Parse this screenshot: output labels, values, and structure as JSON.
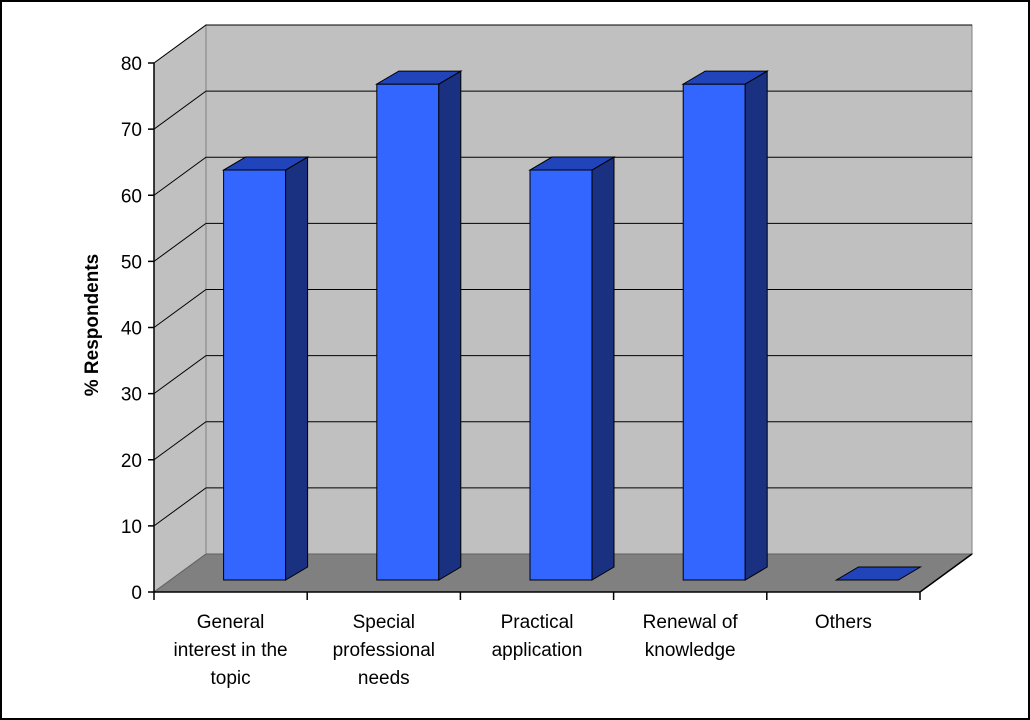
{
  "chart_data": {
    "type": "bar",
    "style": "3d-column",
    "title": "",
    "xlabel": "",
    "ylabel": "% Respondents",
    "ylim": [
      0,
      80
    ],
    "yticks": [
      0,
      10,
      20,
      30,
      40,
      50,
      60,
      70,
      80
    ],
    "categories": [
      [
        "General",
        "interest in the",
        "topic"
      ],
      [
        "Special",
        "professional",
        "needs"
      ],
      [
        "Practical",
        "application"
      ],
      [
        "Renewal of",
        "knowledge"
      ],
      [
        "Others"
      ]
    ],
    "values": [
      62,
      75,
      62,
      75,
      0
    ],
    "grid": true,
    "legend": "none",
    "colors": {
      "bar_front": "#3366ff",
      "bar_side": "#1a3080",
      "bar_top": "#2244bb",
      "wall": "#c0c0c0",
      "floor": "#808080",
      "gridline": "#000000"
    }
  }
}
